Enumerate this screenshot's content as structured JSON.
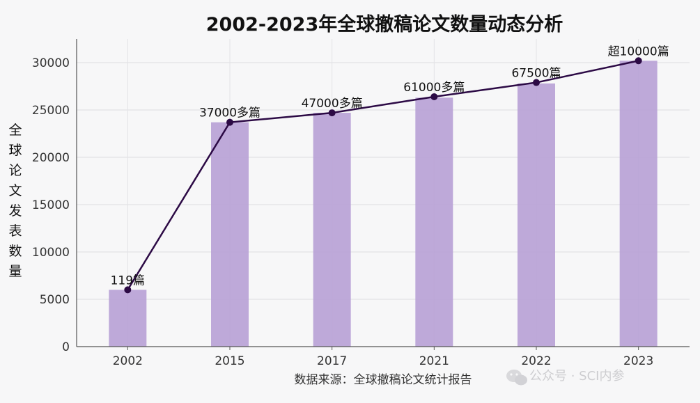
{
  "chart_data": {
    "type": "bar",
    "title": "2002-2023年全球撤稿论文数量动态分析",
    "xlabel": "",
    "ylabel": "全球论文发表数量",
    "categories": [
      "2002",
      "2015",
      "2017",
      "2021",
      "2022",
      "2023"
    ],
    "bar_values": [
      6000,
      23700,
      24700,
      26300,
      27800,
      30200
    ],
    "line_values": [
      6000,
      23700,
      24700,
      26400,
      27900,
      30200
    ],
    "data_labels": [
      "119篇",
      "37000多篇",
      "47000多篇",
      "61000多篇",
      "67500篇",
      "超10000篇"
    ],
    "ylim": [
      0,
      32500
    ],
    "yticks": [
      0,
      5000,
      10000,
      15000,
      20000,
      25000,
      30000
    ],
    "grid": true,
    "colors": {
      "bar": "#b9a2d6",
      "line": "#2c0a45",
      "marker": "#2c0a45"
    }
  },
  "footer": {
    "source": "数据来源：全球撤稿论文统计报告",
    "watermark": "公众号 · SCI内参"
  },
  "icons": {
    "watermark_icon": "wechat-icon"
  }
}
